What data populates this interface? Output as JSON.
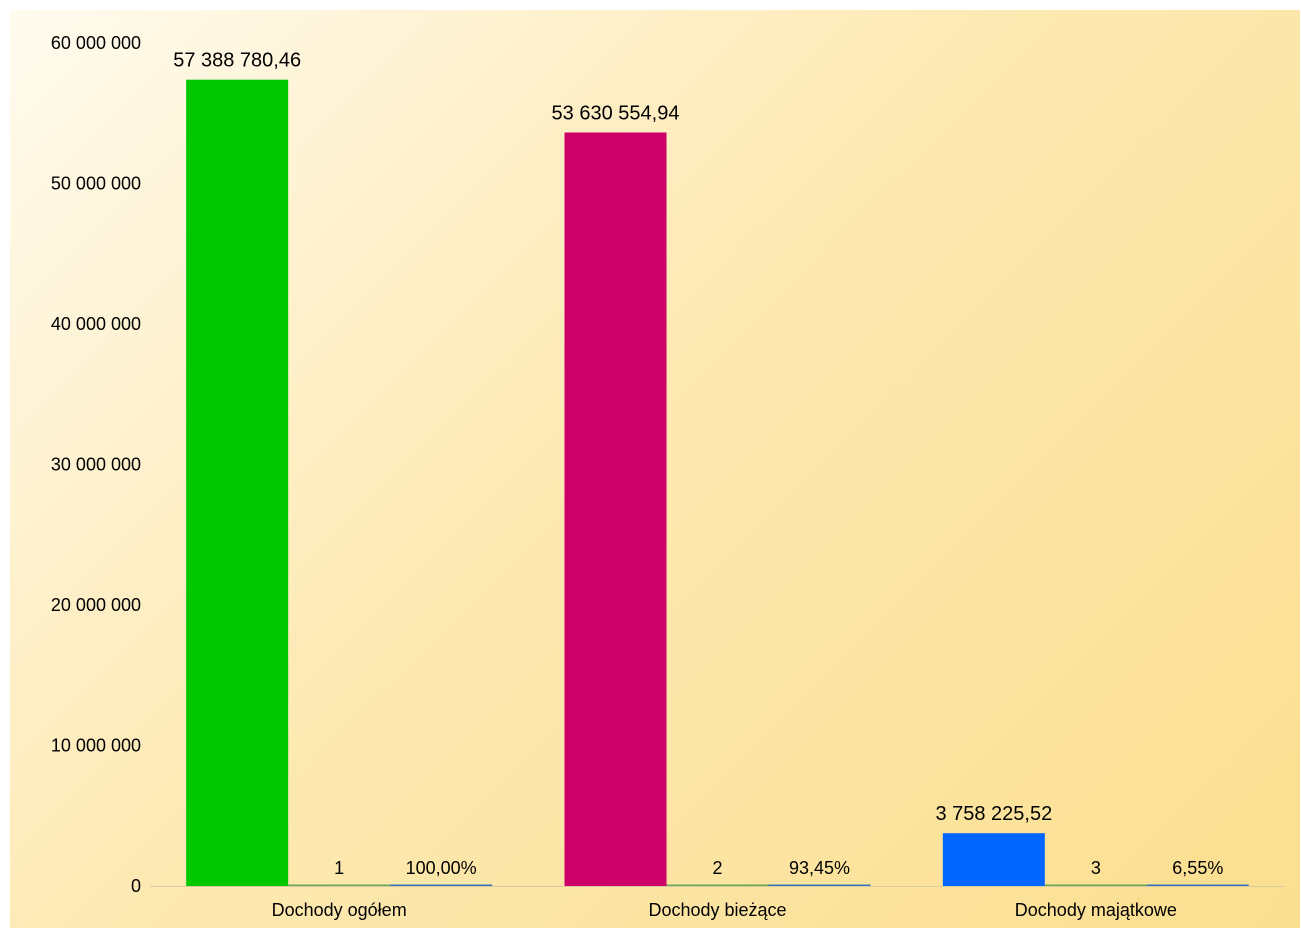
{
  "chart_data": {
    "type": "bar",
    "categories": [
      "Dochody ogółem",
      "Dochody bieżące",
      "Dochody majątkowe"
    ],
    "series": [
      {
        "values": [
          57388780.46,
          53630554.94,
          3758225.52
        ],
        "labels": [
          "57 388 780,46",
          "53 630 554,94",
          "3 758 225,52"
        ],
        "colors": [
          "#00c800",
          "#cc0066",
          "#0066ff"
        ]
      },
      {
        "values": [
          1,
          2,
          3
        ],
        "labels": [
          "1",
          "2",
          "3"
        ],
        "color": "#6aa84f"
      },
      {
        "values": [
          1.0,
          0.9345,
          0.0655
        ],
        "labels": [
          "100,00%",
          "93,45%",
          "6,55%"
        ],
        "color": "#2e75b6"
      }
    ],
    "ylim": [
      0,
      60000000
    ],
    "yticks": [
      0,
      10000000,
      20000000,
      30000000,
      40000000,
      50000000,
      60000000
    ],
    "ytick_labels": [
      "0",
      "10 000 000",
      "20 000 000",
      "30 000 000",
      "40 000 000",
      "50 000 000",
      "60 000 000"
    ],
    "grid": false,
    "legend": false,
    "title": "",
    "xlabel": "",
    "ylabel": ""
  }
}
